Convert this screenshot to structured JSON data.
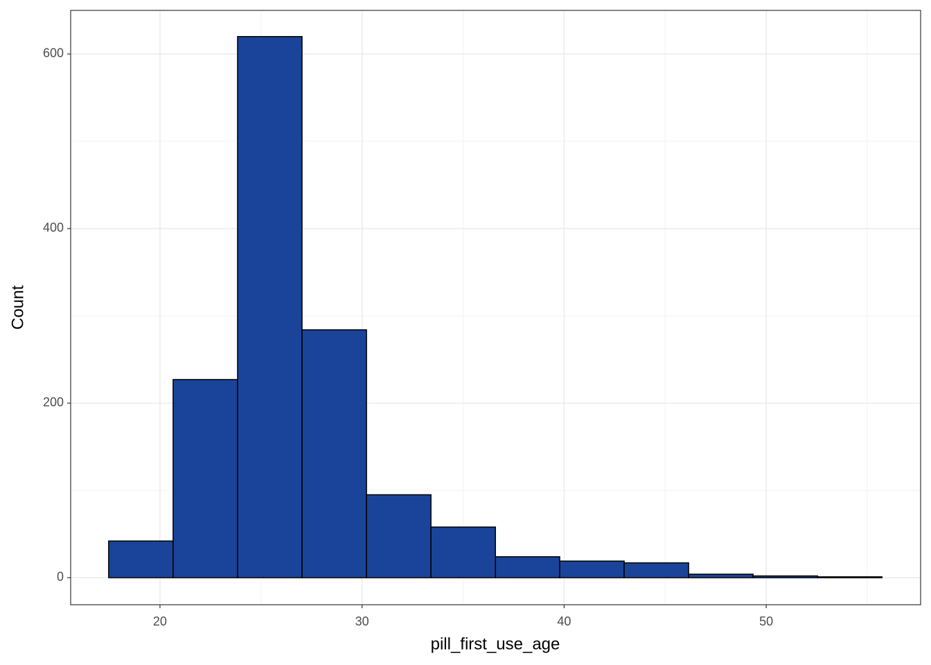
{
  "chart_data": {
    "type": "histogram",
    "x_label": "pill_first_use_age",
    "y_label": "Count",
    "bins": [
      17.46,
      20.65,
      23.84,
      27.03,
      30.22,
      33.41,
      36.6,
      39.78,
      42.97,
      46.16,
      49.35,
      52.54,
      55.73
    ],
    "values": [
      42,
      227,
      620,
      284,
      95,
      58,
      24,
      19,
      17,
      4,
      2,
      1
    ],
    "color": "#1a4499",
    "edge_color": "#000000",
    "xlim": [
      15.58,
      57.64
    ],
    "ylim": [
      -31,
      650
    ],
    "xticks": [
      20,
      30,
      40,
      50
    ],
    "yticks": [
      0,
      200,
      400,
      600
    ],
    "x_minor_ticks": [
      25,
      35,
      45,
      55
    ],
    "y_minor_ticks": [
      100,
      300,
      500
    ],
    "grid": true
  }
}
